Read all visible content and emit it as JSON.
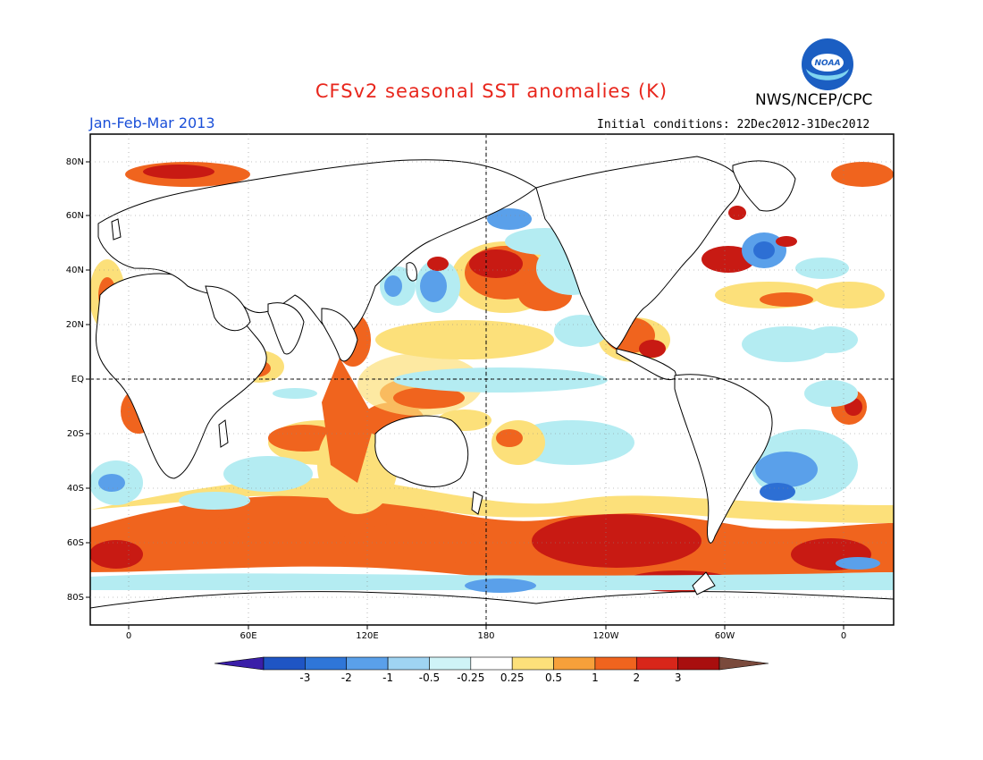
{
  "header": {
    "title": "CFSv2 seasonal SST anomalies (K)",
    "organization": "NWS/NCEP/CPC",
    "logo_text": "NOAA",
    "period": "Jan-Feb-Mar 2013",
    "initial_conditions": "Initial conditions: 22Dec2012-31Dec2012"
  },
  "map": {
    "lat_labels": [
      "80N",
      "60N",
      "40N",
      "20N",
      "EQ",
      "20S",
      "40S",
      "60S",
      "80S"
    ],
    "lon_labels": [
      "0",
      "60E",
      "120E",
      "180",
      "120W",
      "60W",
      "0"
    ],
    "colors": {
      "strong_warm": "#c81a13",
      "warm": "#f0641e",
      "mild_warm": "#fce07a",
      "mild_cool": "#b4ecf2",
      "cool": "#5aa0ea",
      "strong_cool": "#2d6fd4",
      "land": "#ffffff",
      "coast": "#000000"
    }
  },
  "colorbar": {
    "labels": [
      "-3",
      "-2",
      "-1",
      "-0.5",
      "-0.25",
      "0.25",
      "0.5",
      "1",
      "2",
      "3"
    ],
    "colors": [
      "#3a1ea8",
      "#1f55c4",
      "#2f76d8",
      "#5aa0ea",
      "#9fd4f2",
      "#cff3f7",
      "#ffffff",
      "#fce07a",
      "#f7a03a",
      "#f0641e",
      "#d8261a",
      "#a80e0e",
      "#7a4a3c"
    ]
  }
}
